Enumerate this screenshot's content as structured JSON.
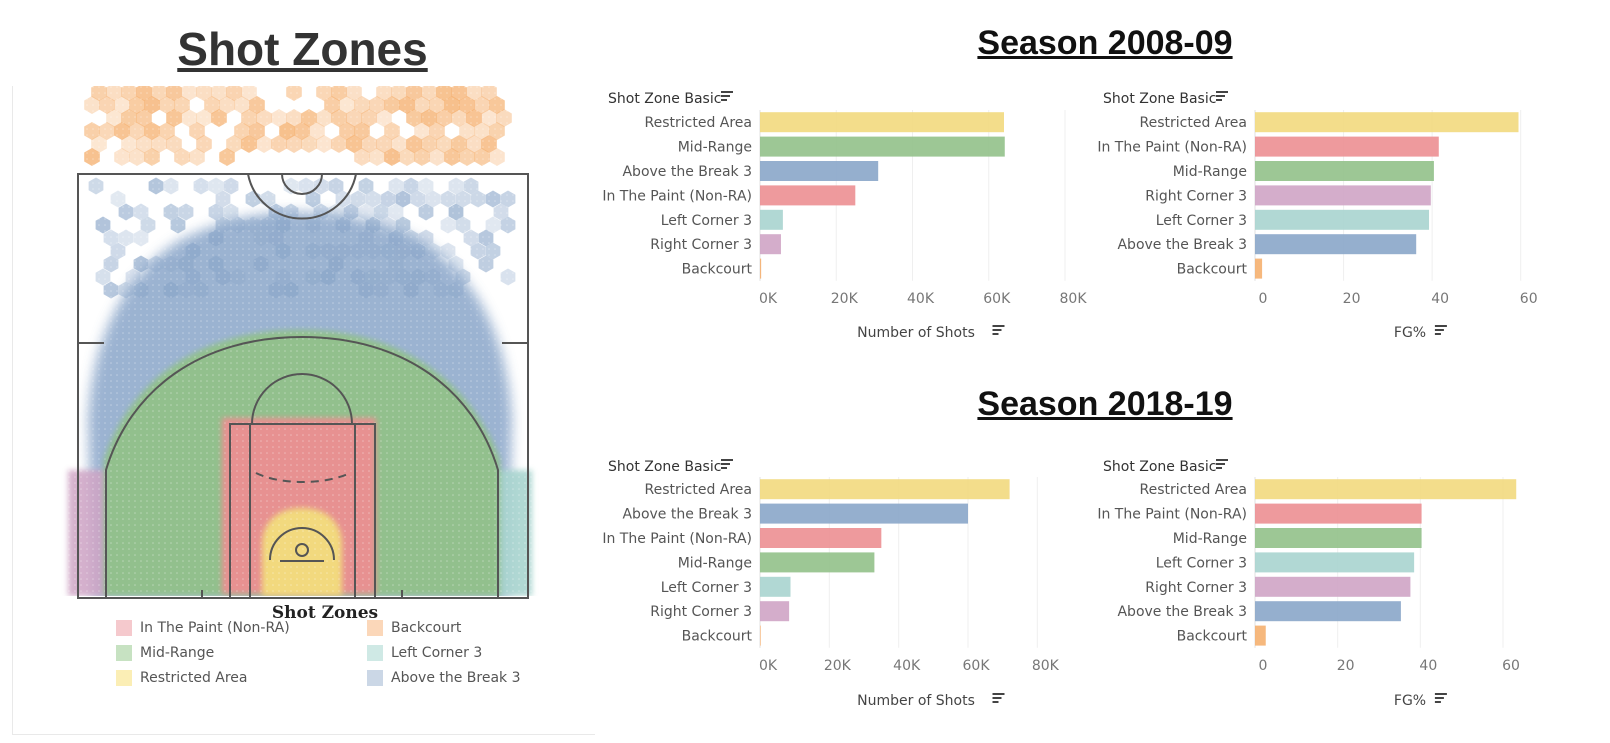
{
  "title": "Shot Zones",
  "legend": {
    "title": "Shot Zones",
    "items": [
      {
        "label": "In The Paint (Non-RA)",
        "color": "#f5c9cd"
      },
      {
        "label": "Backcourt",
        "color": "#fbd7b9"
      },
      {
        "label": "Mid-Range",
        "color": "#c7e2c2"
      },
      {
        "label": "Left Corner 3",
        "color": "#cfe9e5"
      },
      {
        "label": "Restricted Area",
        "color": "#fbeeb5"
      },
      {
        "label": "Above the Break 3",
        "color": "#cbd7e6"
      }
    ]
  },
  "colors": {
    "Restricted Area": "#f2d97e",
    "Mid-Range": "#92c18a",
    "Above the Break 3": "#8aa6c9",
    "In The Paint (Non-RA)": "#ec8f92",
    "Left Corner 3": "#a8d4cf",
    "Right Corner 3": "#cfa4c5",
    "Backcourt": "#f5b06f"
  },
  "seasons": [
    {
      "title": "Season 2008-09"
    },
    {
      "title": "Season 2018-19"
    }
  ],
  "chart_data": [
    {
      "type": "bar",
      "season": "Season 2008-09",
      "category_header": "Shot Zone Basic",
      "categories": [
        "Restricted Area",
        "Mid-Range",
        "Above the Break 3",
        "In The Paint (Non-RA)",
        "Left Corner 3",
        "Right Corner 3",
        "Backcourt"
      ],
      "values": [
        64000,
        64200,
        31000,
        25000,
        6000,
        5500,
        300
      ],
      "xlabel": "Number of Shots",
      "xlim": [
        0,
        80000
      ],
      "ticks": [
        0,
        20000,
        40000,
        60000,
        80000
      ],
      "tick_labels": [
        "0K",
        "20K",
        "40K",
        "60K",
        "80K"
      ],
      "grid": true
    },
    {
      "type": "bar",
      "season": "Season 2008-09",
      "category_header": "Shot Zone Basic",
      "categories": [
        "Restricted Area",
        "In The Paint (Non-RA)",
        "Mid-Range",
        "Right Corner 3",
        "Left Corner 3",
        "Above the Break 3",
        "Backcourt"
      ],
      "values": [
        59.5,
        41.5,
        40.4,
        39.7,
        39.3,
        36.4,
        1.6
      ],
      "xlabel": "FG%",
      "xlim": [
        0,
        70
      ],
      "ticks": [
        0,
        20,
        40,
        60
      ],
      "tick_labels": [
        "0",
        "20",
        "40",
        "60"
      ],
      "grid": true
    },
    {
      "type": "bar",
      "season": "Season 2018-19",
      "category_header": "Shot Zone Basic",
      "categories": [
        "Restricted Area",
        "Above the Break 3",
        "In The Paint (Non-RA)",
        "Mid-Range",
        "Left Corner 3",
        "Right Corner 3",
        "Backcourt"
      ],
      "values": [
        72000,
        60000,
        35000,
        33000,
        8800,
        8400,
        200
      ],
      "xlabel": "Number of Shots",
      "xlim": [
        0,
        90000
      ],
      "ticks": [
        0,
        20000,
        40000,
        60000,
        80000
      ],
      "tick_labels": [
        "0K",
        "20K",
        "40K",
        "60K",
        "80K"
      ],
      "grid": true
    },
    {
      "type": "bar",
      "season": "Season 2018-19",
      "category_header": "Shot Zone Basic",
      "categories": [
        "Restricted Area",
        "In The Paint (Non-RA)",
        "Mid-Range",
        "Left Corner 3",
        "Right Corner 3",
        "Above the Break 3",
        "Backcourt"
      ],
      "values": [
        63.2,
        40.3,
        40.3,
        38.5,
        37.6,
        35.3,
        2.6
      ],
      "xlabel": "FG%",
      "xlim": [
        0,
        75
      ],
      "ticks": [
        0,
        20,
        40,
        60
      ],
      "tick_labels": [
        "0",
        "20",
        "40",
        "60"
      ],
      "grid": true
    }
  ]
}
